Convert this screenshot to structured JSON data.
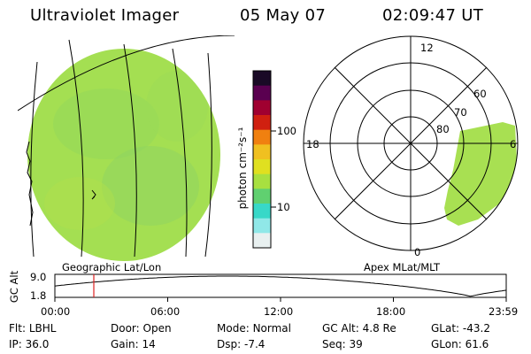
{
  "header": {
    "instrument": "Ultraviolet Imager",
    "date": "05 May 07",
    "time": "02:09:47 UT"
  },
  "left_panel": {
    "caption": "Geographic Lat/Lon"
  },
  "colorbar": {
    "unit_label": "photon cm⁻²s⁻¹",
    "ticks": [
      "100",
      "10"
    ],
    "scale": "log",
    "colors": [
      "#1a0a26",
      "#5a0050",
      "#a00030",
      "#d02010",
      "#f08010",
      "#f0c020",
      "#e0e020",
      "#a8e040",
      "#60d070",
      "#38d8c8",
      "#90e8e8",
      "#e8f0f0"
    ]
  },
  "right_panel": {
    "caption": "Apex MLat/MLT",
    "mlt_labels": [
      "12",
      "18",
      "6",
      "0"
    ],
    "lat_labels": [
      "80",
      "70",
      "60"
    ]
  },
  "altitude_plot": {
    "ylabel": "GC Alt",
    "y_ticks": [
      "9.0",
      "1.8"
    ],
    "x_ticks": [
      "00:00",
      "06:00",
      "12:00",
      "18:00",
      "23:59"
    ],
    "marker_color": "#dd2222"
  },
  "info": {
    "row1": [
      {
        "label": "Flt:",
        "value": "LBHL"
      },
      {
        "label": "Door:",
        "value": "Open"
      },
      {
        "label": "Mode:",
        "value": "Normal"
      },
      {
        "label": "GC Alt:",
        "value": "4.8 Re"
      },
      {
        "label": "GLat:",
        "value": "-43.2"
      }
    ],
    "row2": [
      {
        "label": "IP:",
        "value": "36.0"
      },
      {
        "label": "Gain:",
        "value": "14"
      },
      {
        "label": "Dsp:",
        "value": "-7.4"
      },
      {
        "label": "Seq:",
        "value": "39"
      },
      {
        "label": "GLon:",
        "value": "61.6"
      }
    ]
  }
}
